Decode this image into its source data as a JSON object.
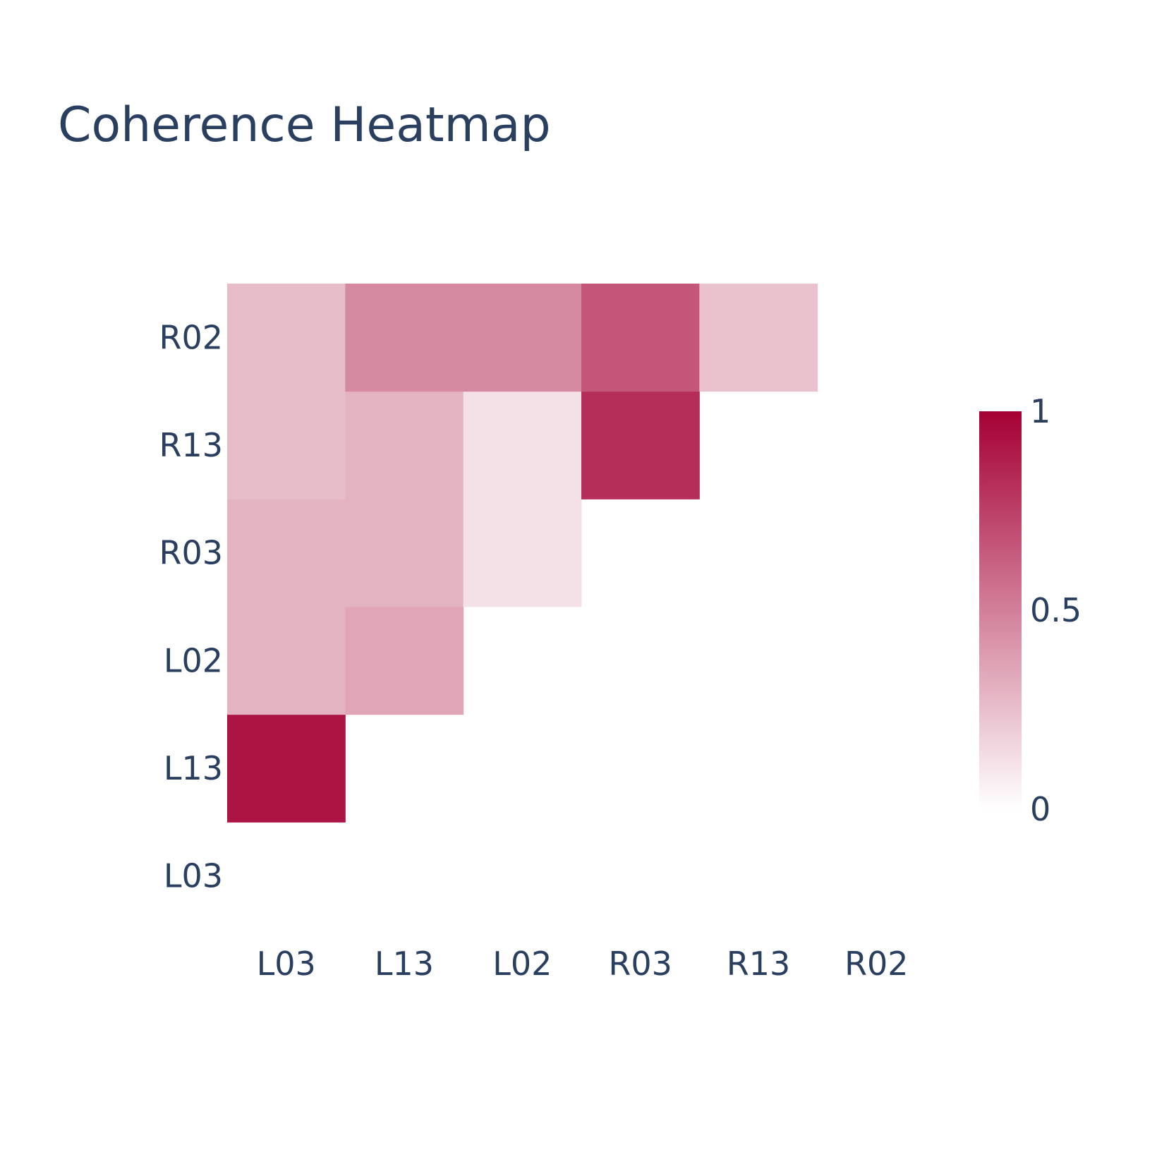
{
  "chart_data": {
    "type": "heatmap",
    "title": "Coherence Heatmap",
    "x_categories": [
      "L03",
      "L13",
      "L02",
      "R03",
      "R13",
      "R02"
    ],
    "y_categories": [
      "L03",
      "L13",
      "L02",
      "R03",
      "R13",
      "R02"
    ],
    "z": [
      [
        null,
        null,
        null,
        null,
        null,
        null
      ],
      [
        0.92,
        null,
        null,
        null,
        null,
        null
      ],
      [
        0.3,
        0.35,
        null,
        null,
        null,
        null
      ],
      [
        0.3,
        0.3,
        0.12,
        null,
        null,
        null
      ],
      [
        0.26,
        0.3,
        0.12,
        0.82,
        null,
        null
      ],
      [
        0.26,
        0.46,
        0.46,
        0.66,
        0.24,
        null
      ]
    ],
    "zlim": [
      0,
      1
    ],
    "colorscale": [
      "#ffffff",
      "#a50034"
    ],
    "colorbar": {
      "ticks": [
        0,
        0.5,
        1
      ],
      "tick_labels": [
        "0",
        "0.5",
        "1"
      ]
    },
    "xlabel": "",
    "ylabel": "",
    "grid": false,
    "legend": "colorbar-right"
  }
}
